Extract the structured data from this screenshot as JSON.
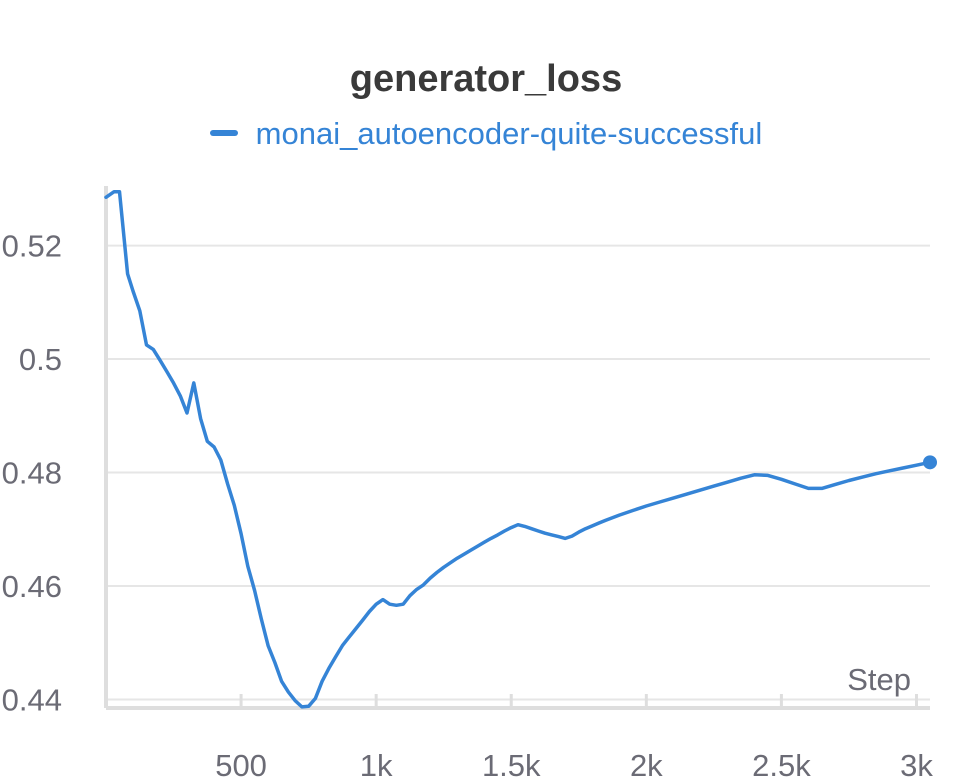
{
  "chart_data": {
    "type": "line",
    "title": "generator_loss",
    "xlabel": "Step",
    "ylabel": "",
    "legend_position": "top-center",
    "grid": true,
    "xlim": [
      0,
      3050
    ],
    "ylim": [
      0.4385,
      0.5305
    ],
    "xticks": [
      500,
      1000,
      1500,
      2000,
      2500,
      3000
    ],
    "xtick_labels": [
      "500",
      "1k",
      "1.5k",
      "2k",
      "2.5k",
      "3k"
    ],
    "yticks": [
      0.44,
      0.46,
      0.48,
      0.5,
      0.52
    ],
    "ytick_labels": [
      "0.44",
      "0.46",
      "0.48",
      "0.5",
      "0.52"
    ],
    "series": [
      {
        "name": "monai_autoencoder-quite-successful",
        "color": "#3584d6",
        "x": [
          0,
          30,
          50,
          80,
          100,
          125,
          150,
          175,
          200,
          225,
          250,
          275,
          300,
          325,
          350,
          375,
          400,
          425,
          450,
          475,
          500,
          525,
          550,
          575,
          600,
          625,
          650,
          675,
          700,
          725,
          750,
          775,
          800,
          825,
          850,
          875,
          900,
          925,
          950,
          975,
          1000,
          1025,
          1050,
          1075,
          1100,
          1125,
          1150,
          1175,
          1200,
          1225,
          1250,
          1275,
          1300,
          1325,
          1350,
          1375,
          1400,
          1425,
          1450,
          1475,
          1500,
          1525,
          1550,
          1575,
          1600,
          1625,
          1650,
          1675,
          1700,
          1725,
          1750,
          1775,
          1800,
          1825,
          1850,
          1900,
          1950,
          2000,
          2050,
          2100,
          2150,
          2200,
          2250,
          2300,
          2350,
          2400,
          2450,
          2500,
          2550,
          2600,
          2650,
          2700,
          2750,
          2800,
          2850,
          2900,
          2950,
          3000,
          3050
        ],
        "y": [
          0.5285,
          0.5295,
          0.5295,
          0.515,
          0.512,
          0.5085,
          0.5025,
          0.5017,
          0.4998,
          0.4978,
          0.4958,
          0.4935,
          0.4905,
          0.4958,
          0.4895,
          0.4855,
          0.4845,
          0.4822,
          0.478,
          0.4742,
          0.4692,
          0.4635,
          0.4592,
          0.4542,
          0.4495,
          0.4465,
          0.4432,
          0.4413,
          0.4398,
          0.4387,
          0.4388,
          0.4402,
          0.4432,
          0.4455,
          0.4475,
          0.4495,
          0.451,
          0.4525,
          0.454,
          0.4555,
          0.4568,
          0.4576,
          0.4568,
          0.4566,
          0.4568,
          0.4583,
          0.4594,
          0.4602,
          0.4614,
          0.4624,
          0.4633,
          0.4641,
          0.4649,
          0.4656,
          0.4663,
          0.467,
          0.4677,
          0.4684,
          0.469,
          0.4697,
          0.4703,
          0.4708,
          0.4705,
          0.4701,
          0.4697,
          0.4693,
          0.469,
          0.4687,
          0.4684,
          0.4688,
          0.4695,
          0.4701,
          0.4706,
          0.4711,
          0.4716,
          0.4725,
          0.4733,
          0.4741,
          0.4748,
          0.4755,
          0.4762,
          0.4769,
          0.4776,
          0.4783,
          0.479,
          0.4796,
          0.4795,
          0.4788,
          0.478,
          0.4772,
          0.4772,
          0.4779,
          0.4786,
          0.4792,
          0.4798,
          0.4803,
          0.4808,
          0.4813,
          0.4818
        ]
      }
    ]
  }
}
